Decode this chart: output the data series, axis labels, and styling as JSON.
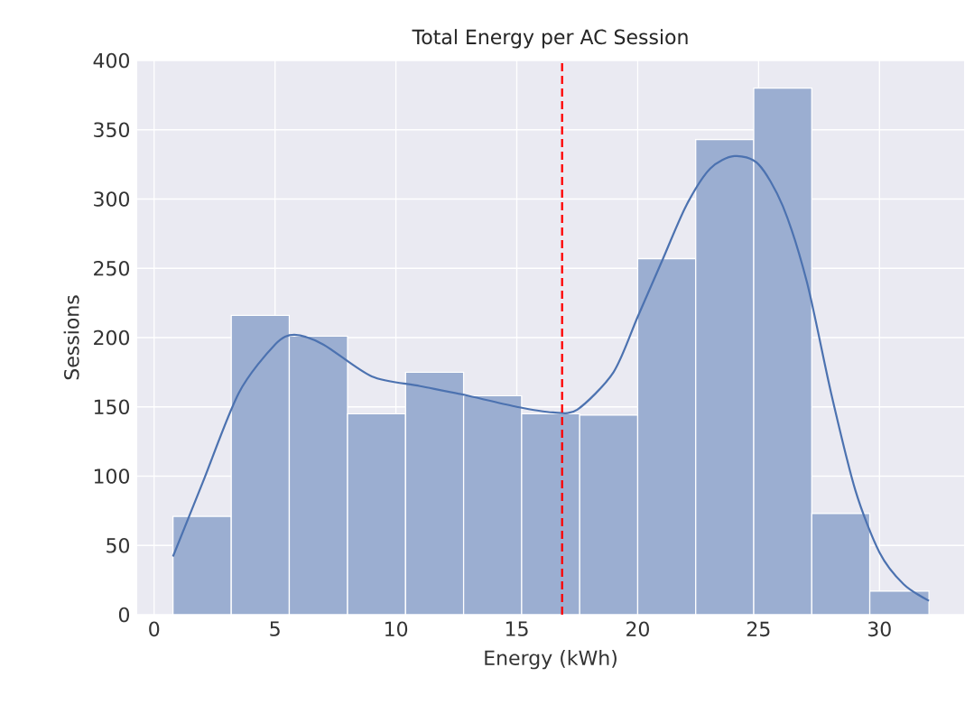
{
  "chart_data": {
    "type": "histogram",
    "title": "Total Energy per AC Session",
    "xlabel": "Energy (kWh)",
    "ylabel": "Sessions",
    "series": [
      {
        "color": "#9baed1",
        "bins": [
          0.78,
          3.19,
          5.59,
          8.0,
          10.4,
          12.8,
          15.2,
          17.6,
          20.0,
          22.4,
          24.8,
          27.2,
          29.6,
          32.05
        ],
        "values": [
          71,
          216,
          201,
          145,
          175,
          158,
          145,
          144,
          257,
          343,
          380,
          73,
          17
        ]
      },
      {
        "type": "line",
        "color": "#4c72b0",
        "x": [
          0.78,
          2,
          3.5,
          5,
          5.8,
          7,
          9,
          11,
          13,
          15,
          16.5,
          17.5,
          19,
          20,
          21,
          22,
          23,
          24,
          25,
          26,
          27,
          28,
          29,
          30,
          31,
          32.05
        ],
        "values": [
          42,
          95,
          160,
          195,
          202,
          195,
          172,
          165,
          158,
          150,
          146,
          148,
          175,
          215,
          255,
          295,
          322,
          331,
          325,
          295,
          240,
          160,
          90,
          45,
          22,
          10
        ]
      }
    ],
    "ref_lines": [
      {
        "axis": "x",
        "value": 16.87,
        "color": "#ff0000",
        "line_style": "dashed"
      }
    ],
    "xlim": [
      -0.7,
      33.5
    ],
    "ylim": [
      0,
      400
    ],
    "xticks": [
      0,
      5,
      10,
      15,
      20,
      25,
      30
    ],
    "yticks": [
      0,
      50,
      100,
      150,
      200,
      250,
      300,
      350,
      400
    ],
    "grid": true
  }
}
